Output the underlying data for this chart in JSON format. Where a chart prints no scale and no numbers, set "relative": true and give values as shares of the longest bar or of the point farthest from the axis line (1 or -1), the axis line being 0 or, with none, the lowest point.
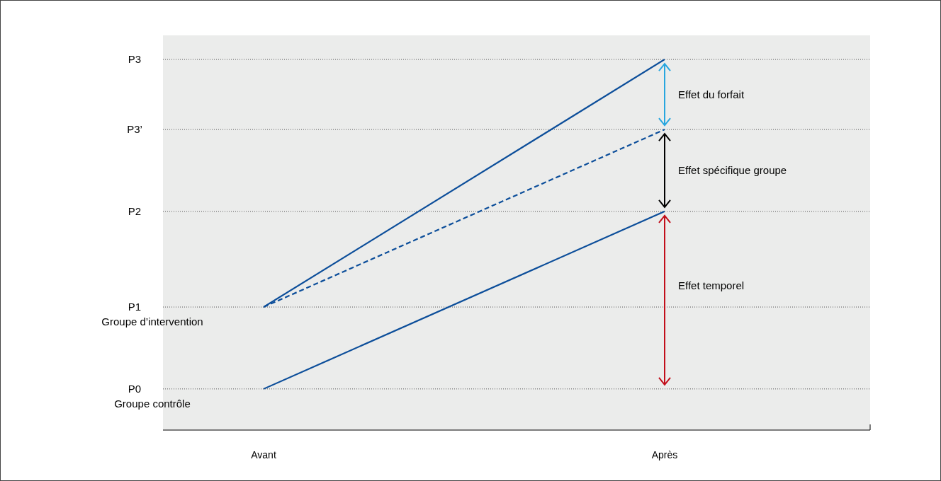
{
  "chart_data": {
    "type": "line",
    "relative": true,
    "categories": [
      "Avant",
      "Après"
    ],
    "series": [
      {
        "color": "#0c4e9a",
        "values": [
          0.332,
          1
        ]
      },
      {
        "color": "#0c4e9a",
        "values": [
          0.332,
          0.811
        ],
        "line_style": "dashed"
      },
      {
        "color": "#0c4e9a",
        "values": [
          0.111,
          0.59
        ]
      }
    ],
    "ref_lines": [
      {
        "axis": "y",
        "value": 1,
        "label": "P3"
      },
      {
        "axis": "y",
        "value": 0.811,
        "label": "P3’"
      },
      {
        "axis": "y",
        "value": 0.59,
        "label": "P2"
      },
      {
        "axis": "y",
        "value": 0.332,
        "label": "P1"
      },
      {
        "axis": "y",
        "value": 0.111,
        "label": "P0"
      }
    ],
    "annotations": [
      "Groupe d’intervention",
      "Groupe contrôle",
      "Effet du forfait",
      "Effet spécifique groupe",
      "Effet temporel"
    ],
    "line_style": "solid",
    "marker": "none",
    "grid": false
  }
}
